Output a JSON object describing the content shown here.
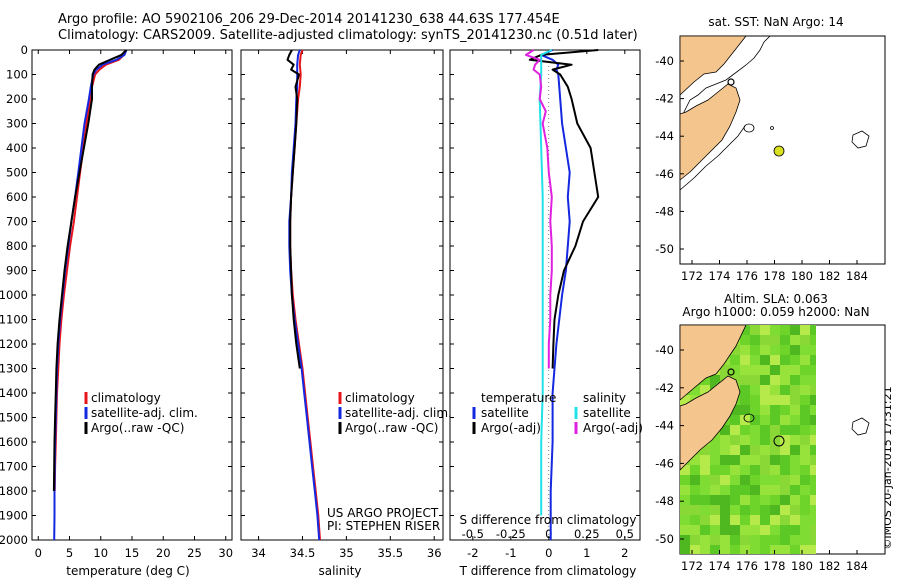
{
  "title": {
    "line1": "Argo profile: AO 5902106_206 29-Dec-2014 20141230_638 44.63S 177.454E",
    "line2": "Climatology: CARS2009. Satellite-adjusted climatology: synTS_20141230.nc (0.51d later)"
  },
  "colors": {
    "climatology": "#e8141c",
    "satellite": "#1428e0",
    "argo": "#000000",
    "salinity_satellite": "#20e0e8",
    "salinity_argo": "#e020e0",
    "land": "#f5c58e",
    "map_bg": "#ffffff",
    "anomaly_map": "#6fd42a",
    "float_marker": "#d8e020"
  },
  "chart_data": [
    {
      "type": "line",
      "panel": "temperature",
      "xlabel": "temperature (deg C)",
      "xlim": [
        -1,
        31
      ],
      "xticks": [
        0,
        5,
        10,
        15,
        20,
        25,
        30
      ],
      "ylim": [
        2000,
        0
      ],
      "yticks": [
        0,
        100,
        200,
        300,
        400,
        500,
        600,
        700,
        800,
        900,
        1000,
        1100,
        1200,
        1300,
        1400,
        1500,
        1600,
        1700,
        1800,
        1900,
        2000
      ],
      "series": [
        {
          "name": "climatology",
          "color": "#e8141c",
          "depth": [
            0,
            20,
            40,
            60,
            80,
            100,
            150,
            200,
            300,
            400,
            500,
            600,
            700,
            800,
            900,
            1000,
            1100,
            1200,
            1300,
            1400,
            1500,
            1600,
            1700,
            1800
          ],
          "values": [
            14.0,
            13.7,
            12.9,
            10.8,
            9.8,
            9.1,
            8.6,
            8.3,
            7.7,
            7.2,
            6.7,
            6.2,
            5.7,
            5.1,
            4.6,
            4.1,
            3.7,
            3.4,
            3.2,
            3.0,
            2.9,
            2.8,
            2.7,
            2.65
          ]
        },
        {
          "name": "satellite-adj. clim.",
          "color": "#1428e0",
          "depth": [
            0,
            20,
            40,
            60,
            80,
            100,
            150,
            200,
            300,
            400,
            500,
            600,
            700,
            800,
            900,
            1000,
            1100,
            1200,
            1300,
            1400,
            1500,
            1600,
            1700,
            1800,
            1900,
            2000
          ],
          "values": [
            14.1,
            13.8,
            12.5,
            10.3,
            9.3,
            8.8,
            8.4,
            8.1,
            7.4,
            6.9,
            6.4,
            5.9,
            5.3,
            4.8,
            4.3,
            3.9,
            3.5,
            3.2,
            3.0,
            2.9,
            2.8,
            2.7,
            2.65,
            2.6,
            2.6,
            2.55
          ]
        },
        {
          "name": "Argo(..raw -QC)",
          "color": "#000000",
          "depth": [
            0,
            20,
            40,
            60,
            80,
            100,
            150,
            200,
            300,
            400,
            500,
            600,
            700,
            800,
            900,
            1000,
            1100,
            1200,
            1300,
            1400,
            1500,
            1600,
            1700,
            1800
          ],
          "values": [
            14.1,
            13.3,
            11.5,
            9.7,
            9.0,
            8.7,
            8.6,
            8.6,
            8.0,
            7.3,
            6.6,
            5.9,
            5.3,
            4.7,
            4.2,
            3.8,
            3.4,
            3.1,
            2.9,
            2.8,
            2.7,
            2.6,
            2.55,
            2.5
          ]
        }
      ]
    },
    {
      "type": "line",
      "panel": "salinity",
      "xlabel": "salinity",
      "xlim": [
        33.8,
        36.1
      ],
      "xticks": [
        34,
        34.5,
        35,
        35.5,
        36
      ],
      "xticklabels": [
        "34",
        "34.5",
        "35",
        "35.5",
        "36"
      ],
      "ylim": [
        2000,
        0
      ],
      "series": [
        {
          "name": "climatology",
          "color": "#e8141c",
          "depth": [
            0,
            20,
            60,
            100,
            150,
            200,
            300,
            400,
            500,
            600,
            700,
            800,
            900,
            1000,
            1100,
            1200,
            1300,
            1400,
            1500,
            1600,
            1700,
            1800,
            1900,
            2000
          ],
          "values": [
            34.5,
            34.48,
            34.47,
            34.48,
            34.47,
            34.45,
            34.43,
            34.41,
            34.39,
            34.37,
            34.36,
            34.36,
            34.37,
            34.39,
            34.42,
            34.46,
            34.5,
            34.53,
            34.56,
            34.59,
            34.62,
            34.65,
            34.68,
            34.7
          ]
        },
        {
          "name": "satellite-adj. clim.",
          "color": "#1428e0",
          "depth": [
            0,
            20,
            60,
            100,
            150,
            200,
            300,
            400,
            500,
            600,
            700,
            800,
            900,
            1000,
            1100,
            1200,
            1300,
            1400,
            1500,
            1600,
            1700,
            1800,
            1900,
            2000
          ],
          "values": [
            34.47,
            34.45,
            34.44,
            34.44,
            34.44,
            34.43,
            34.42,
            34.4,
            34.38,
            34.37,
            34.35,
            34.35,
            34.36,
            34.38,
            34.41,
            34.45,
            34.49,
            34.52,
            34.55,
            34.58,
            34.61,
            34.64,
            34.67,
            34.69
          ]
        },
        {
          "name": "Argo(..raw -QC)",
          "color": "#000000",
          "depth": [
            0,
            20,
            40,
            60,
            80,
            100,
            150,
            200,
            300,
            400,
            500,
            600,
            700,
            800,
            900,
            1000,
            1100,
            1200,
            1300
          ],
          "values": [
            34.38,
            34.35,
            34.33,
            34.4,
            34.37,
            34.46,
            34.42,
            34.44,
            34.43,
            34.41,
            34.39,
            34.37,
            34.36,
            34.36,
            34.37,
            34.38,
            34.4,
            34.43,
            34.47
          ]
        }
      ]
    },
    {
      "type": "line",
      "panel": "difference",
      "xlabel_top": "S difference from climatology",
      "xlabel_bottom": "T difference from climatology",
      "xlim": [
        -2.6,
        2.4
      ],
      "t_xticks": [
        -2,
        -1,
        0,
        1,
        2
      ],
      "s_xticks": [
        -0.5,
        -0.25,
        0,
        0.25,
        0.5
      ],
      "ylim": [
        2000,
        0
      ],
      "legend_heads": {
        "temperature": "temperature",
        "salinity": "salinity"
      },
      "series": [
        {
          "name": "satellite",
          "group": "temperature",
          "color": "#1428e0",
          "depth": [
            0,
            20,
            40,
            60,
            80,
            100,
            200,
            300,
            400,
            500,
            600,
            700,
            800,
            900,
            1000,
            1200,
            1400,
            1600,
            1800,
            1900,
            2000
          ],
          "values": [
            0.1,
            -0.2,
            0.1,
            0.25,
            0.2,
            0.25,
            0.3,
            0.35,
            0.45,
            0.55,
            0.5,
            0.55,
            0.5,
            0.45,
            0.35,
            0.2,
            0.1,
            0.1,
            0.05,
            0.05,
            0.05
          ]
        },
        {
          "name": "Argo(-adj)",
          "group": "temperature",
          "color": "#000000",
          "depth": [
            0,
            20,
            40,
            60,
            80,
            100,
            150,
            200,
            300,
            400,
            500,
            600,
            700,
            750,
            800,
            900,
            1000,
            1100,
            1200,
            1300
          ],
          "values": [
            1.3,
            -0.2,
            -0.5,
            0.6,
            0.1,
            0.3,
            0.5,
            0.6,
            0.75,
            1.1,
            1.2,
            1.3,
            0.9,
            0.8,
            0.7,
            0.4,
            0.25,
            0.15,
            0.12,
            0.1
          ]
        },
        {
          "name": "satellite",
          "group": "salinity",
          "color": "#20e0e8",
          "depth": [
            0,
            20,
            60,
            100,
            200,
            400,
            600,
            800,
            1000,
            1200,
            1400,
            1600,
            1800,
            1900
          ],
          "values": [
            0.02,
            -0.05,
            -0.05,
            -0.05,
            -0.06,
            -0.05,
            -0.04,
            -0.04,
            -0.04,
            -0.04,
            -0.04,
            -0.05,
            -0.05,
            -0.05
          ]
        },
        {
          "name": "Argo(-adj)",
          "group": "salinity",
          "color": "#e020e0",
          "depth": [
            0,
            20,
            40,
            60,
            80,
            100,
            150,
            200,
            250,
            300,
            400,
            500,
            600,
            700,
            800,
            900,
            1000,
            1100,
            1200,
            1300
          ],
          "values": [
            -0.1,
            -0.15,
            -0.06,
            -0.09,
            -0.1,
            -0.06,
            -0.05,
            -0.06,
            -0.02,
            -0.04,
            -0.01,
            0,
            0.02,
            0.01,
            0.02,
            0.02,
            0.01,
            0.01,
            0,
            0
          ]
        }
      ]
    }
  ],
  "legend": {
    "climatology": "climatology",
    "satellite": "satellite-adj. clim.",
    "argo": "Argo(..raw -QC)",
    "diff_temperature": "temperature",
    "diff_salinity": "salinity",
    "diff_sat": "satellite",
    "diff_argo": "Argo(-adj)"
  },
  "credits": {
    "project": "US ARGO PROJECT",
    "pi": "PI: STEPHEN RISER",
    "imos": "©IMOS 20-Jan-2015 17:31:21"
  },
  "maps": {
    "sst": {
      "title": "sat. SST: NaN Argo: 14",
      "lat_ticks": [
        "-40",
        "-42",
        "-44",
        "-46",
        "-48",
        "-50"
      ],
      "lon_ticks": [
        "172",
        "174",
        "176",
        "178",
        "180",
        "182",
        "184"
      ]
    },
    "sla": {
      "title1": "Altim. SLA: 0.063",
      "title2": "Argo h1000: 0.059 h2000: NaN",
      "lat_ticks": [
        "-40",
        "-42",
        "-44",
        "-46",
        "-48",
        "-50"
      ],
      "lon_ticks": [
        "172",
        "174",
        "176",
        "178",
        "180",
        "182",
        "184"
      ]
    }
  },
  "yticks_labels": [
    "0",
    "100",
    "200",
    "300",
    "400",
    "500",
    "600",
    "700",
    "800",
    "900",
    "1000",
    "1100",
    "1200",
    "1300",
    "1400",
    "1500",
    "1600",
    "1700",
    "1800",
    "1900",
    "2000"
  ]
}
